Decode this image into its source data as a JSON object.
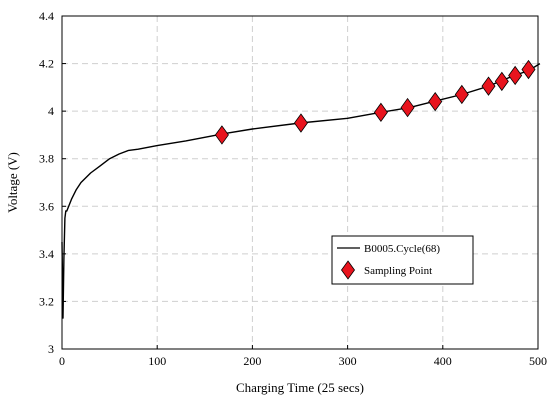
{
  "chart_data": {
    "type": "line",
    "title": "",
    "xlabel": "Charging Time (25 secs)",
    "ylabel": "Voltage (V)",
    "xlim": [
      0,
      500
    ],
    "ylim": [
      3,
      4.4
    ],
    "x_ticks": [
      "0",
      "100",
      "200",
      "300",
      "400",
      "500"
    ],
    "y_ticks": [
      "3",
      "3.2",
      "3.4",
      "3.6",
      "3.8",
      "4",
      "4.2",
      "4.4"
    ],
    "grid": true,
    "legend_position": "center-right",
    "series": [
      {
        "name": "B0005.Cycle(68)",
        "kind": "line",
        "color": "#000000",
        "x": [
          0,
          1,
          2,
          3,
          4,
          5,
          7,
          10,
          15,
          20,
          30,
          40,
          50,
          60,
          70,
          80,
          100,
          130,
          170,
          200,
          250,
          300,
          335,
          365,
          390,
          420,
          448,
          460,
          475,
          490,
          502
        ],
        "y": [
          3.45,
          3.13,
          3.38,
          3.55,
          3.58,
          3.58,
          3.6,
          3.63,
          3.67,
          3.7,
          3.74,
          3.77,
          3.8,
          3.82,
          3.835,
          3.84,
          3.855,
          3.875,
          3.905,
          3.925,
          3.95,
          3.97,
          3.995,
          4.015,
          4.04,
          4.07,
          4.105,
          4.125,
          4.15,
          4.17,
          4.2
        ]
      },
      {
        "name": "Sampling Point",
        "kind": "marker",
        "color": "#e8141e",
        "x": [
          168,
          251,
          335,
          363,
          392,
          420,
          448,
          462,
          476,
          490
        ],
        "y": [
          3.9,
          3.95,
          3.995,
          4.015,
          4.04,
          4.07,
          4.105,
          4.125,
          4.15,
          4.175
        ]
      }
    ]
  }
}
